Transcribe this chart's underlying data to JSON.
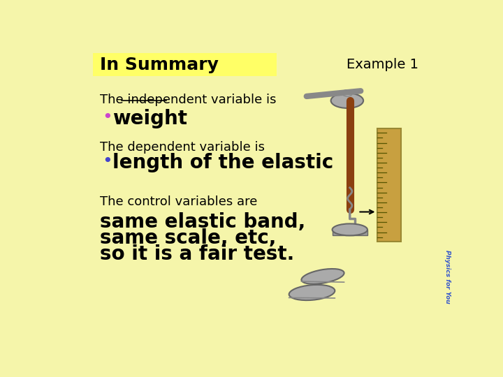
{
  "bg_color": "#f5f5aa",
  "title_bg_color": "#ffff66",
  "title_text": "In Summary",
  "title_color": "#000000",
  "title_fontsize": 18,
  "example_text": "Example 1",
  "example_fontsize": 14,
  "line1": "The independent variable is",
  "line1_fontsize": 13,
  "underline_word": "independent",
  "bullet1_dot_color": "#cc44cc",
  "bullet1_text": "weight",
  "bullet1_color": "#000000",
  "bullet1_fontsize": 20,
  "line2": "The dependent variable is",
  "line2_fontsize": 13,
  "bullet2_dot_color": "#4444cc",
  "bullet2_text": "length of the elastic",
  "bullet2_color": "#000000",
  "bullet2_fontsize": 20,
  "line3": "The control variables are",
  "line3_fontsize": 13,
  "body_line1": "same elastic band,",
  "body_line2": "same scale, etc,",
  "body_line3": "so it is a fair test.",
  "body_fontsize": 20,
  "body_color": "#000000",
  "watermark": "Physics for You",
  "watermark_color": "#3355cc"
}
